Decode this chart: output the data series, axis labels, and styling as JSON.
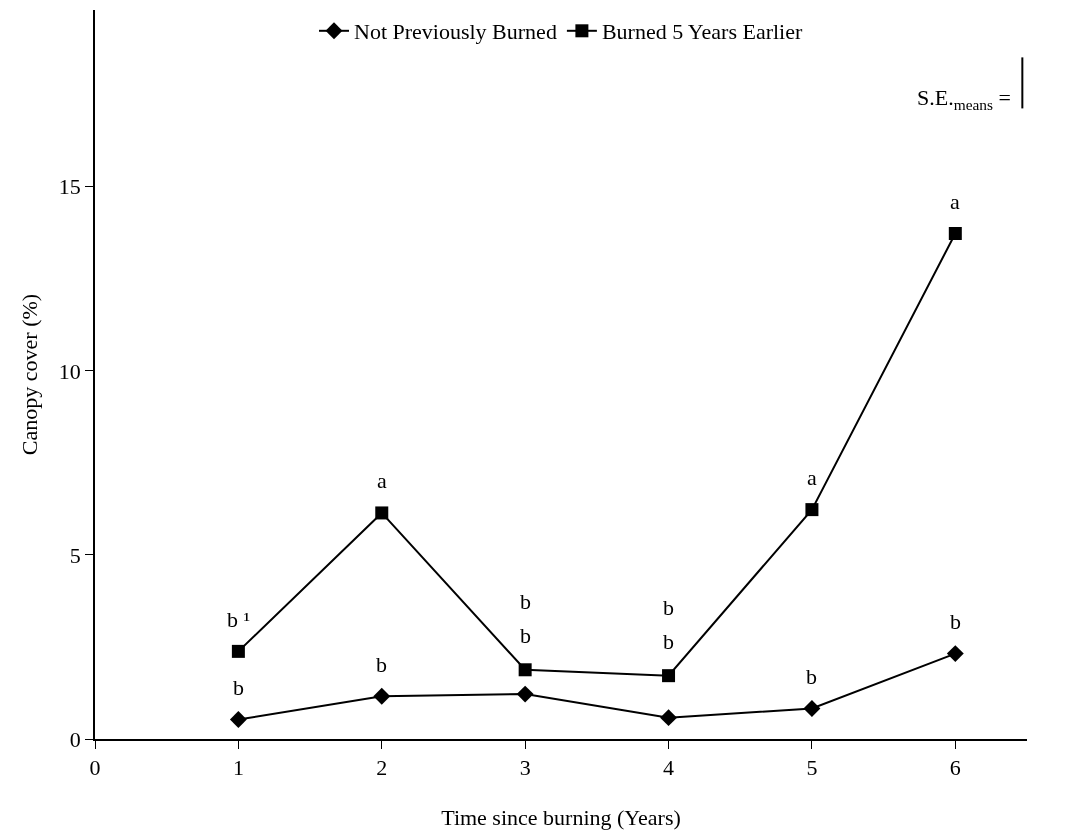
{
  "chart_data": {
    "type": "line",
    "xlabel": "Time since burning (Years)",
    "ylabel": "Canopy cover (%)",
    "x": [
      1,
      2,
      3,
      4,
      5,
      6
    ],
    "series": [
      {
        "name": "Not Previously Burned",
        "color": "#000000",
        "marker": "diamond",
        "values": [
          0.53,
          1.16,
          1.22,
          0.58,
          0.83,
          2.32
        ],
        "value_labels": [
          "b",
          "b",
          "b",
          "b",
          "b",
          "b"
        ]
      },
      {
        "name": "Burned 5 Years Earlier",
        "color": "#000000",
        "marker": "square",
        "values": [
          2.38,
          6.14,
          1.88,
          1.72,
          6.23,
          13.73
        ],
        "value_labels": [
          "b ¹",
          "a",
          "b",
          "b",
          "a",
          "a"
        ]
      }
    ],
    "xlim": [
      0,
      6.5
    ],
    "xticks": [
      0,
      1,
      2,
      3,
      4,
      5,
      6
    ],
    "ylim": [
      0,
      19.8
    ],
    "yticks": [
      0,
      5,
      10,
      15
    ],
    "grid": false,
    "legend": "top",
    "line_style": "solid",
    "annotations": [
      "S.E.$_{means}$ ="
    ]
  }
}
